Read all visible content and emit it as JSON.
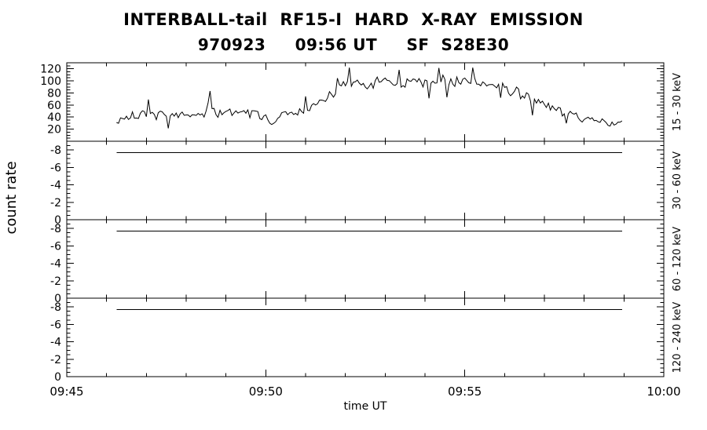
{
  "title_line1": "INTERBALL-tail  RF15-I  HARD  X-RAY  EMISSION",
  "title_line2": "970923     09:56 UT     SF  S28E30",
  "axes": {
    "y_label": "count rate",
    "x_label": "time UT"
  },
  "colors": {
    "foreground": "#000000",
    "background": "#ffffff"
  },
  "chart_data": {
    "type": "line",
    "title": "INTERBALL-tail RF15-I HARD X-RAY EMISSION",
    "subtitle": "970923 09:56 UT SF S28E30",
    "xlabel": "time UT",
    "ylabel": "count rate",
    "x_unit": "minutes after 09:45 UT",
    "x_range": [
      0,
      15
    ],
    "x_major_ticks": [
      0,
      5,
      10,
      15
    ],
    "x_major_tick_labels": [
      "09:45",
      "09:50",
      "09:55",
      "10:00"
    ],
    "x_minor_step": 1,
    "legend": "none",
    "grid": false,
    "panels": [
      {
        "band_label": "15 - 30 keV",
        "ylim": [
          0,
          130
        ],
        "y_major_ticks": [
          20,
          40,
          60,
          80,
          100,
          120
        ],
        "y_minor_step": 5,
        "series": {
          "name": "15-30 keV count rate",
          "style": "noisy-line",
          "noise_amplitude": 9,
          "envelope": [
            [
              1.25,
              30
            ],
            [
              1.5,
              40
            ],
            [
              1.75,
              43
            ],
            [
              2.0,
              46
            ],
            [
              2.25,
              43
            ],
            [
              2.5,
              46
            ],
            [
              2.75,
              44
            ],
            [
              3.0,
              47
            ],
            [
              3.25,
              44
            ],
            [
              3.5,
              46
            ],
            [
              3.55,
              60
            ],
            [
              3.6,
              82
            ],
            [
              3.65,
              58
            ],
            [
              3.75,
              45
            ],
            [
              4.0,
              47
            ],
            [
              4.25,
              45
            ],
            [
              4.5,
              44
            ],
            [
              4.75,
              46
            ],
            [
              5.0,
              40
            ],
            [
              5.15,
              26
            ],
            [
              5.3,
              38
            ],
            [
              5.5,
              44
            ],
            [
              5.75,
              47
            ],
            [
              6.0,
              52
            ],
            [
              6.25,
              60
            ],
            [
              6.5,
              70
            ],
            [
              6.75,
              82
            ],
            [
              7.0,
              95
            ],
            [
              7.25,
              98
            ],
            [
              7.5,
              90
            ],
            [
              7.75,
              96
            ],
            [
              8.0,
              101
            ],
            [
              8.25,
              95
            ],
            [
              8.5,
              92
            ],
            [
              8.75,
              99
            ],
            [
              9.0,
              101
            ],
            [
              9.25,
              96
            ],
            [
              9.5,
              103
            ],
            [
              9.75,
              99
            ],
            [
              10.0,
              101
            ],
            [
              10.25,
              97
            ],
            [
              10.5,
              96
            ],
            [
              10.75,
              93
            ],
            [
              11.0,
              89
            ],
            [
              11.25,
              83
            ],
            [
              11.5,
              76
            ],
            [
              11.75,
              69
            ],
            [
              12.0,
              62
            ],
            [
              12.25,
              55
            ],
            [
              12.5,
              48
            ],
            [
              12.75,
              43
            ],
            [
              13.0,
              39
            ],
            [
              13.25,
              35
            ],
            [
              13.5,
              31
            ],
            [
              13.75,
              29
            ],
            [
              13.95,
              30
            ]
          ]
        }
      },
      {
        "band_label": "30 - 60 keV",
        "ylim": [
          0,
          -9
        ],
        "y_major_ticks": [
          0,
          -2,
          -4,
          -6,
          -8
        ],
        "y_minor_step": 0.5,
        "flat_line": {
          "x_start": 1.25,
          "x_end": 13.95,
          "value": -7.7
        }
      },
      {
        "band_label": "60 - 120 keV",
        "ylim": [
          0,
          -9
        ],
        "y_major_ticks": [
          0,
          -2,
          -4,
          -6,
          -8
        ],
        "y_minor_step": 0.5,
        "flat_line": {
          "x_start": 1.25,
          "x_end": 13.95,
          "value": -7.7
        }
      },
      {
        "band_label": "120 - 240 keV",
        "ylim": [
          0,
          -9
        ],
        "y_major_ticks": [
          0,
          -2,
          -4,
          -6,
          -8
        ],
        "y_minor_step": 0.5,
        "flat_line": {
          "x_start": 1.25,
          "x_end": 13.95,
          "value": -7.7
        }
      }
    ]
  }
}
